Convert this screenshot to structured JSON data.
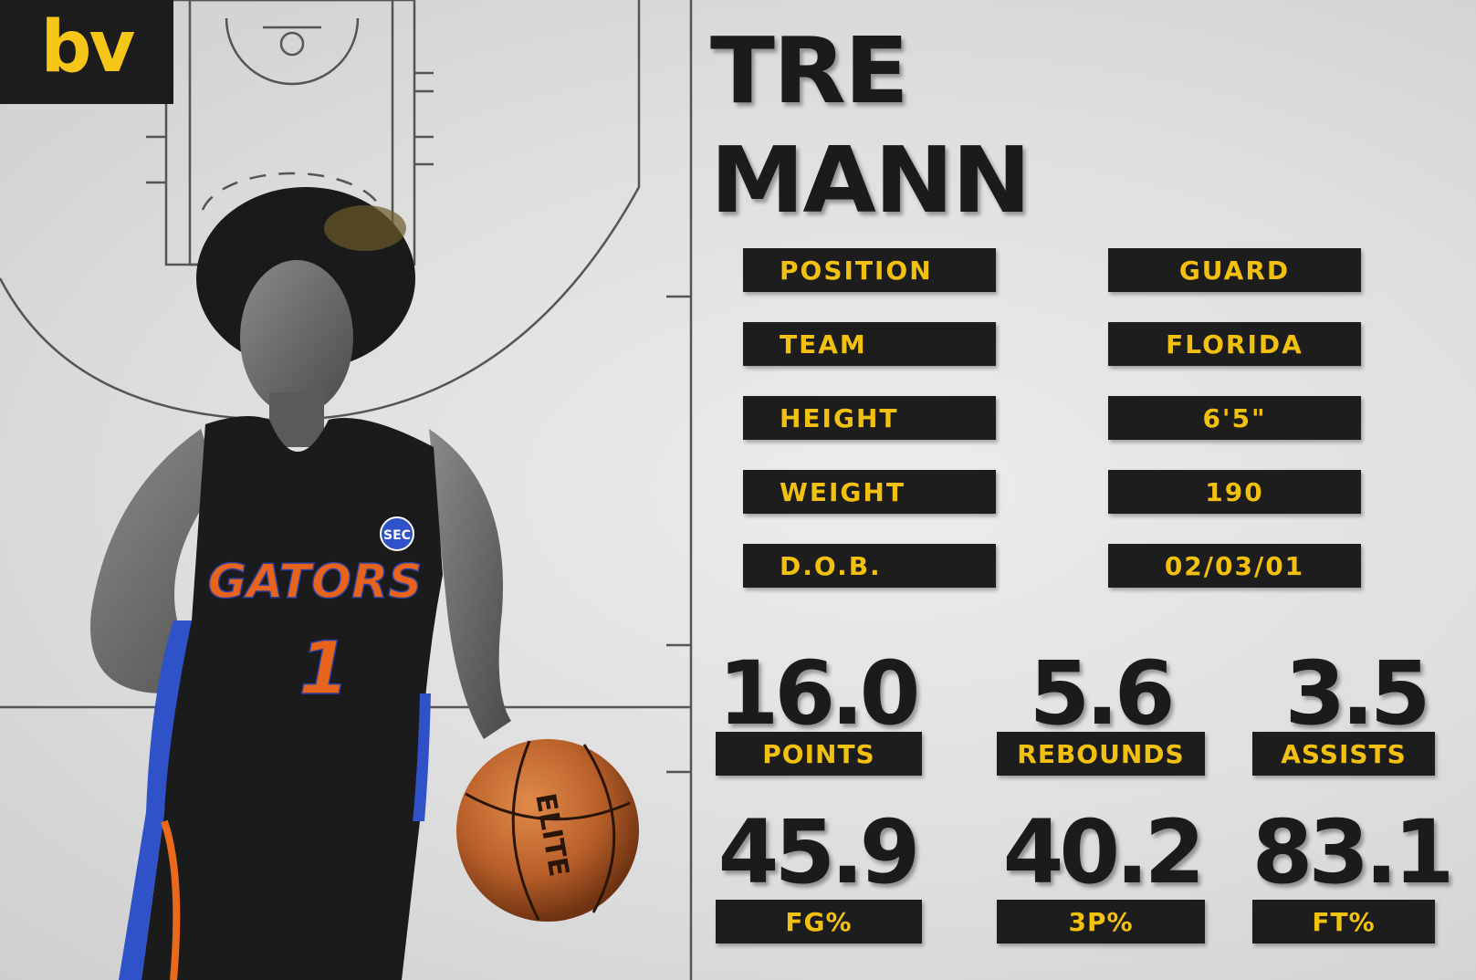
{
  "brand": {
    "logo_text": "bv",
    "accent_color": "#f2c10f",
    "dark_color": "#1d1d1d"
  },
  "player": {
    "first_name": "TRE",
    "last_name": "MANN",
    "jersey_text": "GATORS",
    "jersey_number": "1",
    "conference_badge": "SEC",
    "ball_text": "ELITE"
  },
  "bio": [
    {
      "label": "POSITION",
      "value": "GUARD"
    },
    {
      "label": "TEAM",
      "value": "FLORIDA"
    },
    {
      "label": "HEIGHT",
      "value": "6'5\""
    },
    {
      "label": "WEIGHT",
      "value": "190"
    },
    {
      "label": "D.O.B.",
      "value": "02/03/01"
    }
  ],
  "stats": [
    {
      "value": "16.0",
      "label": "POINTS"
    },
    {
      "value": "5.6",
      "label": "REBOUNDS"
    },
    {
      "value": "3.5",
      "label": "ASSISTS"
    },
    {
      "value": "45.9",
      "label": "FG%"
    },
    {
      "value": "40.2",
      "label": "3P%"
    },
    {
      "value": "83.1",
      "label": "FT%"
    }
  ]
}
